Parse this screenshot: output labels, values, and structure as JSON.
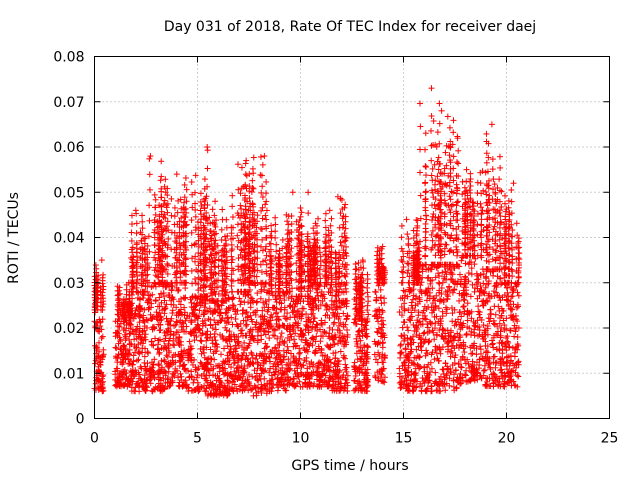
{
  "chart_data": {
    "type": "scatter",
    "title": "Day 031 of 2018, Rate Of TEC Index for receiver daej",
    "xlabel": "GPS time / hours",
    "ylabel": "ROTI / TECUs",
    "xlim": [
      0,
      25
    ],
    "ylim": [
      0,
      0.08
    ],
    "x_ticks": [
      "0",
      "5",
      "10",
      "15",
      "20",
      "25"
    ],
    "y_ticks": [
      "0",
      "0.01",
      "0.02",
      "0.03",
      "0.04",
      "0.05",
      "0.06",
      "0.07",
      "0.08"
    ],
    "grid": true,
    "marker": "+",
    "color": "#ff0000",
    "series": [
      {
        "segments": [
          {
            "x": [
              0.0,
              0.45
            ],
            "low": 0.006,
            "high": 0.024,
            "peak": 0.035
          },
          {
            "x": [
              1.0,
              1.8
            ],
            "low": 0.007,
            "high": 0.022,
            "peak": 0.03
          },
          {
            "x": [
              1.8,
              2.6
            ],
            "low": 0.006,
            "high": 0.028,
            "peak": 0.046
          },
          {
            "x": [
              2.6,
              3.5
            ],
            "low": 0.006,
            "high": 0.03,
            "peak": 0.058
          },
          {
            "x": [
              3.5,
              4.5
            ],
            "low": 0.007,
            "high": 0.03,
            "peak": 0.054
          },
          {
            "x": [
              4.5,
              5.5
            ],
            "low": 0.006,
            "high": 0.027,
            "peak": 0.06
          },
          {
            "x": [
              5.5,
              6.5
            ],
            "low": 0.005,
            "high": 0.026,
            "peak": 0.048
          },
          {
            "x": [
              6.5,
              7.5
            ],
            "low": 0.006,
            "high": 0.028,
            "peak": 0.057
          },
          {
            "x": [
              7.5,
              8.5
            ],
            "low": 0.005,
            "high": 0.03,
            "peak": 0.058
          },
          {
            "x": [
              8.5,
              9.5
            ],
            "low": 0.006,
            "high": 0.028,
            "peak": 0.045
          },
          {
            "x": [
              9.5,
              10.5
            ],
            "low": 0.007,
            "high": 0.027,
            "peak": 0.05
          },
          {
            "x": [
              10.5,
              11.5
            ],
            "low": 0.007,
            "high": 0.03,
            "peak": 0.046
          },
          {
            "x": [
              11.5,
              12.3
            ],
            "low": 0.006,
            "high": 0.026,
            "peak": 0.049
          },
          {
            "x": [
              12.6,
              13.3
            ],
            "low": 0.006,
            "high": 0.022,
            "peak": 0.035
          },
          {
            "x": [
              13.6,
              14.1
            ],
            "low": 0.008,
            "high": 0.03,
            "peak": 0.038
          },
          {
            "x": [
              14.8,
              15.8
            ],
            "low": 0.006,
            "high": 0.03,
            "peak": 0.044
          },
          {
            "x": [
              15.8,
              16.8
            ],
            "low": 0.006,
            "high": 0.034,
            "peak": 0.073
          },
          {
            "x": [
              16.8,
              17.8
            ],
            "low": 0.006,
            "high": 0.034,
            "peak": 0.068
          },
          {
            "x": [
              17.8,
              18.8
            ],
            "low": 0.008,
            "high": 0.036,
            "peak": 0.055
          },
          {
            "x": [
              18.8,
              19.8
            ],
            "low": 0.007,
            "high": 0.033,
            "peak": 0.065
          },
          {
            "x": [
              19.8,
              20.6
            ],
            "low": 0.007,
            "high": 0.03,
            "peak": 0.052
          }
        ]
      }
    ]
  }
}
